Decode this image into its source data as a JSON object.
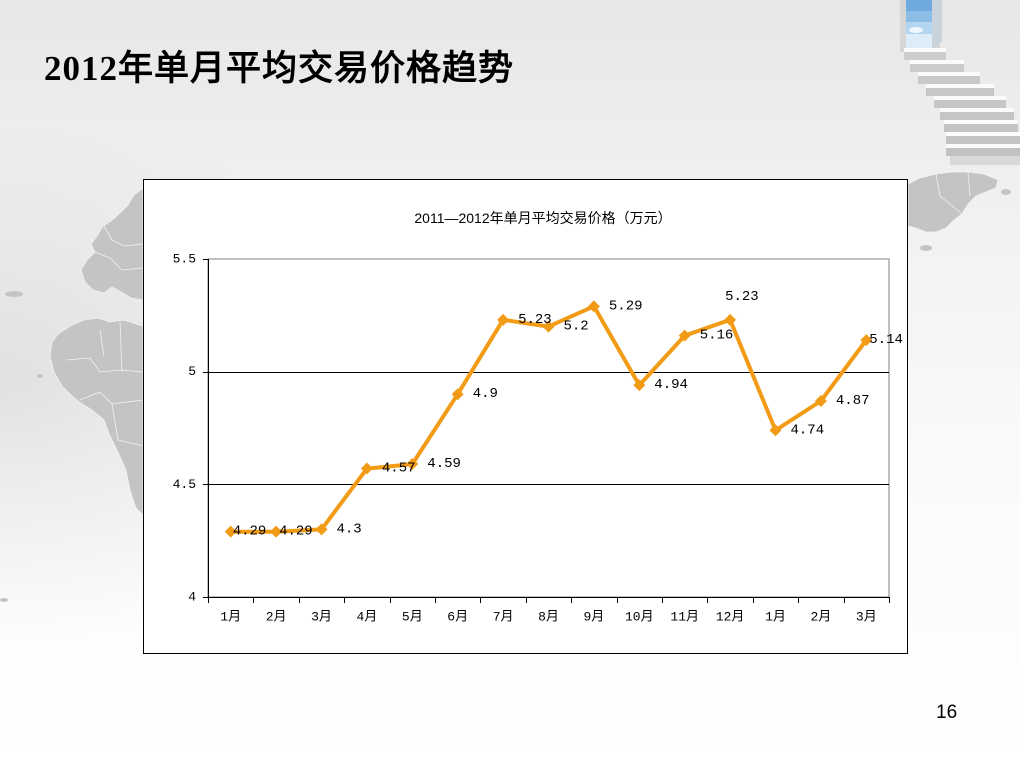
{
  "slide": {
    "title": "2012年单月平均交易价格趋势",
    "page_number": "16"
  },
  "chart_data": {
    "type": "line",
    "title": "2011—2012年单月平均交易价格（万元）",
    "categories": [
      "1月",
      "2月",
      "3月",
      "4月",
      "5月",
      "6月",
      "7月",
      "8月",
      "9月",
      "10月",
      "11月",
      "12月",
      "1月",
      "2月",
      "3月"
    ],
    "values": [
      4.29,
      4.29,
      4.3,
      4.57,
      4.59,
      4.9,
      5.23,
      5.2,
      5.29,
      4.94,
      5.16,
      5.23,
      4.74,
      4.87,
      5.14
    ],
    "ylim": [
      4,
      5.5
    ],
    "y_ticks": [
      4,
      4.5,
      5,
      5.5
    ],
    "grid": true,
    "legend": false,
    "data_labels": true,
    "colors": {
      "line": "#F29B16",
      "gridline": "#000000",
      "plot_border": "#808080",
      "axis": "#000000"
    }
  }
}
